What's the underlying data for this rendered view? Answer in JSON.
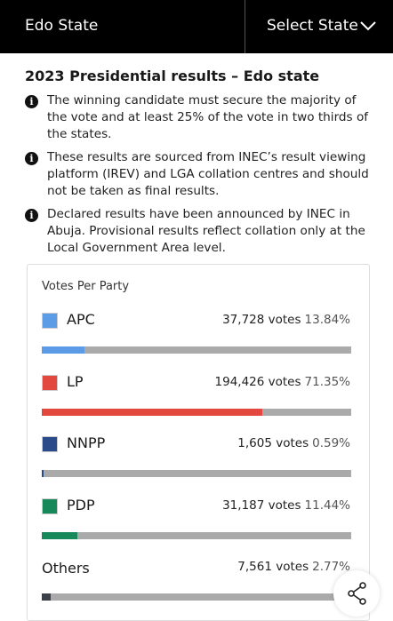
{
  "header": {
    "state": "Edo State",
    "selector": "Select State"
  },
  "title": "2023 Presidential results – Edo state",
  "notes": [
    "The winning candidate must secure the majority of the vote and at least 25% of the vote in two thirds of the states.",
    "These results are sourced from INEC’s result viewing platform (IREV) and LGA collation centres and should not be taken as final results.",
    "Declared results have been announced by INEC in Abuja. Provisional results reflect collation only at the Local Government Area level."
  ],
  "card": {
    "title": "Votes Per Party",
    "bar_range": [
      0,
      100
    ],
    "parties": [
      {
        "name": "APC",
        "votes": "37,728 votes",
        "share": 13.84,
        "share_label": "13.84%",
        "color": "#5c9ce6"
      },
      {
        "name": "LP",
        "votes": "194,426 votes",
        "share": 71.35,
        "share_label": "71.35%",
        "color": "#e2483e"
      },
      {
        "name": "NNPP",
        "votes": "1,605 votes",
        "share": 0.59,
        "share_label": "0.59%",
        "color": "#2b4a8a"
      },
      {
        "name": "PDP",
        "votes": "31,187 votes",
        "share": 11.44,
        "share_label": "11.44%",
        "color": "#17885a"
      },
      {
        "name": "Others",
        "votes": "7,561 votes",
        "share": 2.77,
        "share_label": "2.77%",
        "color": "#3b4049"
      }
    ]
  }
}
